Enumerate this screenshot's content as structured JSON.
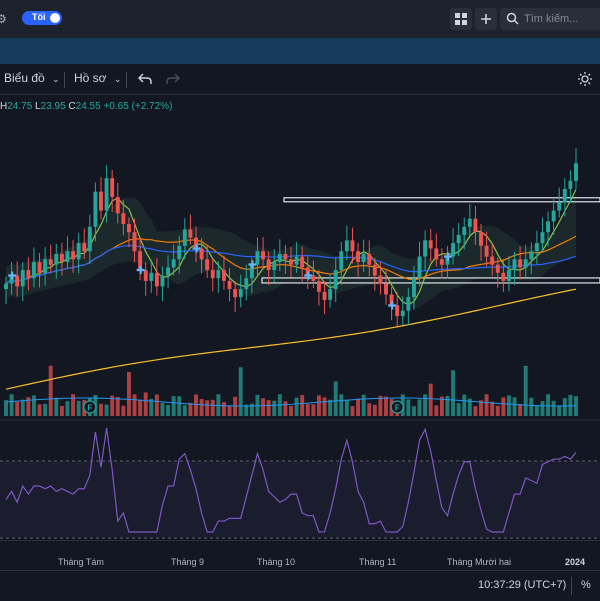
{
  "topbar": {
    "theme_toggle_label": "Tối",
    "search_placeholder": "Tìm kiếm..."
  },
  "toolbar": {
    "indicators_label": "Biểu đồ",
    "profile_label": "Hồ sơ"
  },
  "ohlc": {
    "h_key": "H",
    "h_val": "24.75",
    "l_key": "L",
    "l_val": "23.95",
    "c_key": "C",
    "c_val": "24.55",
    "change": "+0.65 (+2.72%)"
  },
  "xaxis": {
    "labels": [
      "Tháng Tám",
      "Tháng 9",
      "Tháng 10",
      "Tháng 11",
      "Tháng Mười hai",
      "2024"
    ]
  },
  "status": {
    "time": "10:37:29 (UTC+7)",
    "percent": "%"
  },
  "markers": {
    "earnings": "F"
  },
  "colors": {
    "up": "#26a69a",
    "down": "#ef5350",
    "ma_short": "#8bc34a",
    "ma_mid": "#f57c00",
    "ma_long": "#2962ff",
    "ma_200": "#fbc02d",
    "rsi": "#7e57c2"
  },
  "chart_data": {
    "type": "candlestick",
    "x_labels": [
      "Tháng Tám",
      "Tháng 9",
      "Tháng 10",
      "Tháng 11",
      "Tháng Mười hai",
      "2024"
    ],
    "last": {
      "high": 24.75,
      "low": 23.95,
      "close": 24.55,
      "change": 0.65,
      "change_pct": 2.72
    },
    "closes": [
      20.1,
      20.4,
      20.0,
      20.6,
      20.3,
      20.9,
      20.5,
      21.0,
      20.8,
      21.2,
      20.9,
      21.3,
      21.0,
      21.6,
      21.3,
      22.2,
      23.5,
      22.8,
      24.0,
      23.3,
      22.7,
      22.3,
      22.0,
      21.3,
      20.6,
      20.2,
      20.5,
      20.0,
      20.4,
      20.7,
      21.0,
      21.5,
      22.1,
      21.8,
      21.4,
      21.0,
      20.6,
      20.3,
      20.6,
      20.2,
      19.9,
      19.6,
      19.9,
      20.3,
      20.8,
      21.3,
      21.0,
      20.6,
      20.9,
      21.2,
      21.0,
      20.8,
      21.1,
      20.7,
      20.4,
      20.2,
      19.8,
      19.5,
      19.9,
      20.6,
      21.3,
      21.7,
      21.3,
      20.9,
      21.2,
      20.8,
      20.4,
      20.1,
      19.7,
      19.3,
      18.9,
      19.1,
      19.6,
      20.3,
      21.1,
      21.7,
      21.4,
      21.0,
      20.8,
      21.1,
      21.6,
      21.9,
      22.2,
      22.5,
      22.0,
      21.5,
      21.1,
      20.8,
      20.5,
      20.2,
      20.6,
      21.0,
      20.7,
      21.0,
      21.3,
      21.6,
      22.0,
      22.4,
      22.8,
      23.1,
      23.6,
      23.9,
      24.55
    ]
  }
}
